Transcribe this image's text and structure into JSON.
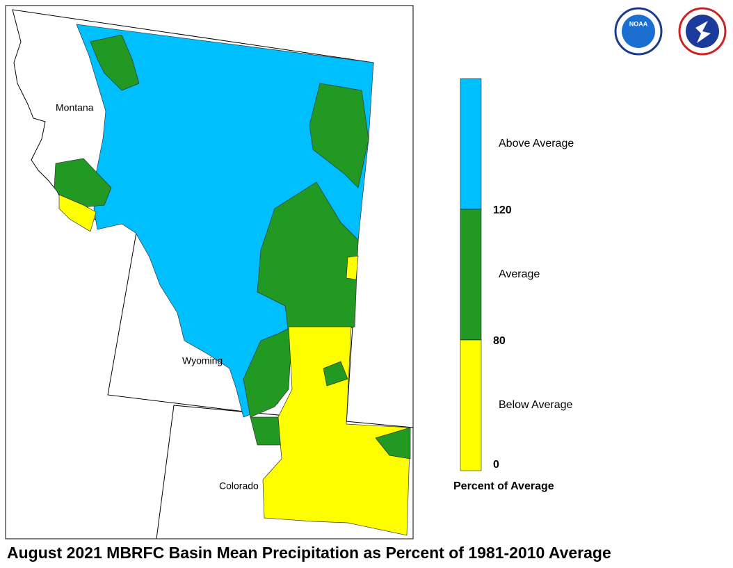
{
  "title": "August 2021 MBRFC Basin Mean Precipitation as Percent of 1981-2010 Average",
  "states": [
    "Montana",
    "Wyoming",
    "Colorado"
  ],
  "logos": {
    "noaa": "NOAA"
  },
  "legend": {
    "title": "Percent of Average",
    "classes": [
      {
        "label": "Above Average",
        "color": "#00bfff"
      },
      {
        "label": "Average",
        "color": "#229922"
      },
      {
        "label": "Below Average",
        "color": "#ffff00"
      }
    ],
    "ticks": [
      120,
      80,
      0
    ]
  }
}
